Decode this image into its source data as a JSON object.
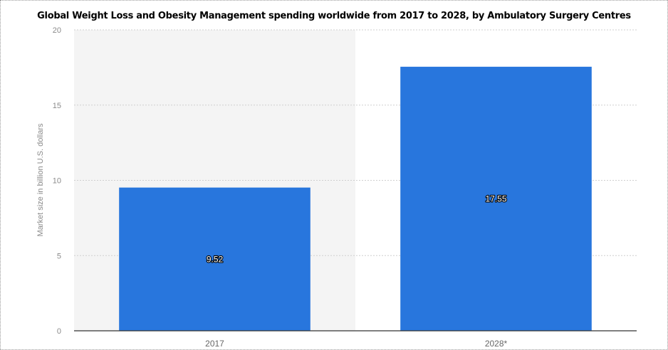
{
  "chart_data": {
    "type": "bar",
    "title": "Global Weight Loss and Obesity Management spending worldwide from 2017 to 2028, by Ambulatory Surgery Centres",
    "xlabel": "",
    "ylabel": "Market size in billion U.S. dollars",
    "categories": [
      "2017",
      "2028*"
    ],
    "values": [
      9.52,
      17.55
    ],
    "data_labels": [
      "9.52",
      "17.55"
    ],
    "ylim": [
      0,
      20
    ],
    "yticks": [
      0,
      5,
      10,
      15,
      20
    ],
    "grid": true,
    "legend": "none",
    "colors": {
      "bar": "#2876dd",
      "band_alt": "#f4f4f4",
      "grid": "#cfcfcf",
      "axis_line": "#333333",
      "tick_text": "#8a8a8a"
    }
  }
}
